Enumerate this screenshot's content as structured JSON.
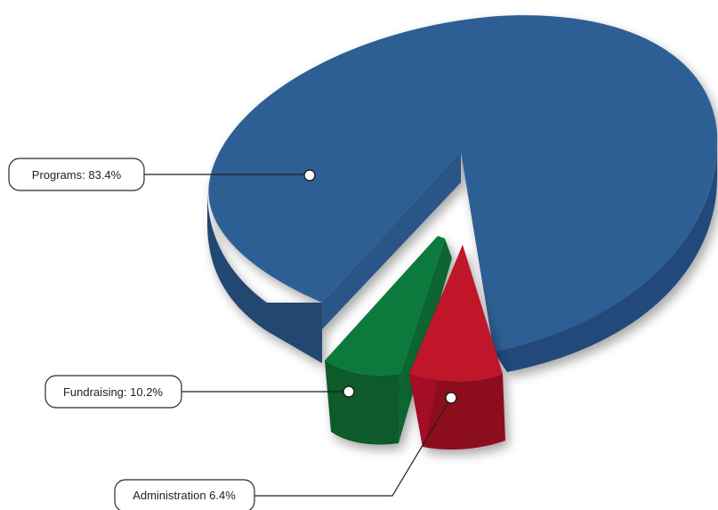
{
  "chart_data": {
    "type": "pie",
    "title": "",
    "slices": [
      {
        "label": "Programs: 83.4%",
        "category": "Programs",
        "value": 83.4,
        "color": "#2f5f94",
        "side_color": "#22466f",
        "exploded": false
      },
      {
        "label": "Fundraising: 10.2%",
        "category": "Fundraising",
        "value": 10.2,
        "color": "#0b7a3d",
        "side_color": "#075a2c",
        "exploded": true
      },
      {
        "label": "Administration 6.4%",
        "category": "Administration",
        "value": 6.4,
        "color": "#c0142c",
        "side_color": "#8c0c1f",
        "exploded": true
      }
    ],
    "style": "3d-exploded"
  }
}
